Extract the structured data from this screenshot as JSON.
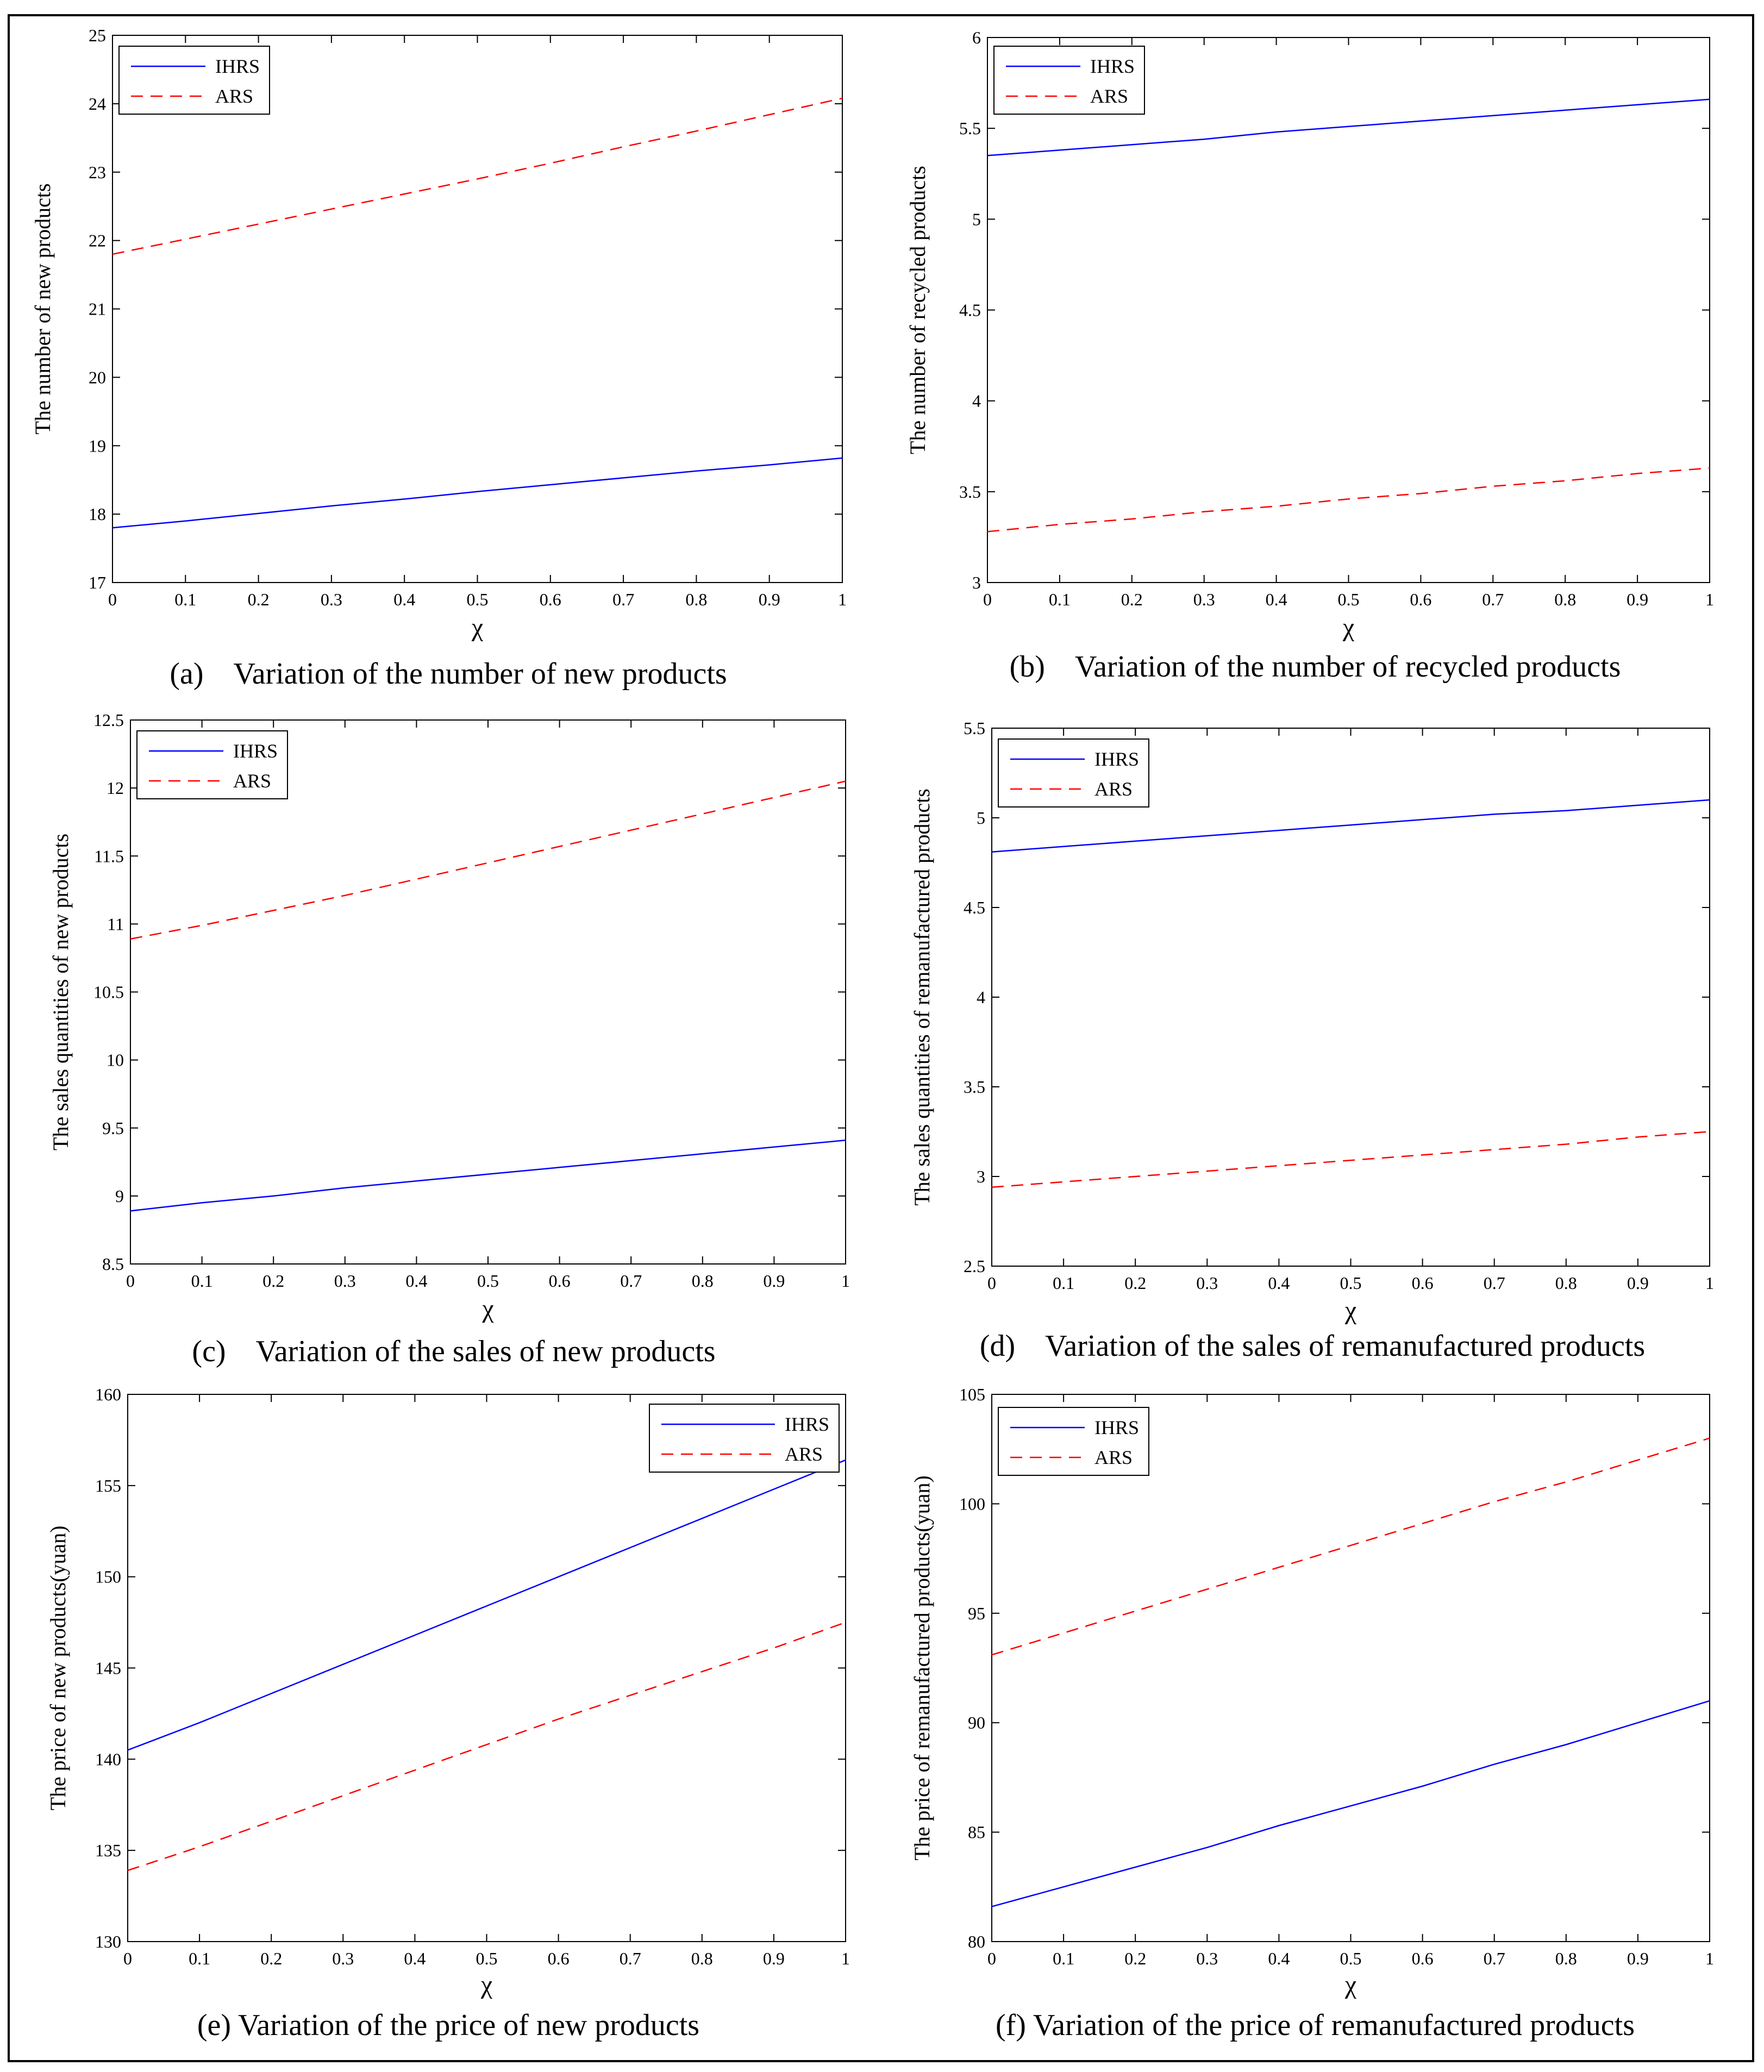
{
  "chart_data": [
    {
      "type": "line",
      "caption": "(a)    Variation of the number of new products",
      "xlabel": "χ",
      "ylabel": "The number of new products",
      "xlim": [
        0,
        1
      ],
      "ylim": [
        17,
        25
      ],
      "xticks": [
        "0",
        "0.1",
        "0.2",
        "0.3",
        "0.4",
        "0.5",
        "0.6",
        "0.7",
        "0.8",
        "0.9",
        "1"
      ],
      "yticks": [
        "17",
        "18",
        "19",
        "20",
        "21",
        "22",
        "23",
        "24",
        "25"
      ],
      "legend_position": "top-left",
      "x": [
        0,
        0.1,
        0.2,
        0.3,
        0.4,
        0.5,
        0.6,
        0.7,
        0.8,
        0.9,
        1
      ],
      "series": [
        {
          "name": "IHRS",
          "color": "#0000ff",
          "style": "solid",
          "values": [
            17.8,
            17.9,
            18.01,
            18.12,
            18.22,
            18.33,
            18.43,
            18.53,
            18.63,
            18.72,
            18.82
          ]
        },
        {
          "name": "ARS",
          "color": "#ff0000",
          "style": "dashed",
          "values": [
            21.8,
            22.02,
            22.24,
            22.46,
            22.68,
            22.9,
            23.13,
            23.37,
            23.6,
            23.84,
            24.08
          ]
        }
      ]
    },
    {
      "type": "line",
      "caption": "(b)    Variation of the number of recycled products",
      "xlabel": "χ",
      "ylabel": "The number of recycled products",
      "xlim": [
        0,
        1
      ],
      "ylim": [
        3,
        6
      ],
      "xticks": [
        "0",
        "0.1",
        "0.2",
        "0.3",
        "0.4",
        "0.5",
        "0.6",
        "0.7",
        "0.8",
        "0.9",
        "1"
      ],
      "yticks": [
        "3",
        "3.5",
        "4",
        "4.5",
        "5",
        "5.5",
        "6"
      ],
      "legend_position": "top-left",
      "x": [
        0,
        0.1,
        0.2,
        0.3,
        0.4,
        0.5,
        0.6,
        0.7,
        0.8,
        0.9,
        1
      ],
      "series": [
        {
          "name": "IHRS",
          "color": "#0000ff",
          "style": "solid",
          "values": [
            5.35,
            5.38,
            5.41,
            5.44,
            5.48,
            5.51,
            5.54,
            5.57,
            5.6,
            5.63,
            5.66
          ]
        },
        {
          "name": "ARS",
          "color": "#ff0000",
          "style": "dashed",
          "values": [
            3.28,
            3.32,
            3.35,
            3.39,
            3.42,
            3.46,
            3.49,
            3.53,
            3.56,
            3.6,
            3.63
          ]
        }
      ]
    },
    {
      "type": "line",
      "caption": "(c)    Variation of the sales of new products",
      "xlabel": "χ",
      "ylabel": "The sales quantities of new products",
      "xlim": [
        0,
        1
      ],
      "ylim": [
        8.5,
        12.5
      ],
      "xticks": [
        "0",
        "0.1",
        "0.2",
        "0.3",
        "0.4",
        "0.5",
        "0.6",
        "0.7",
        "0.8",
        "0.9",
        "1"
      ],
      "yticks": [
        "8.5",
        "9",
        "9.5",
        "10",
        "10.5",
        "11",
        "11.5",
        "12",
        "12.5"
      ],
      "legend_position": "top-left",
      "x": [
        0,
        0.1,
        0.2,
        0.3,
        0.4,
        0.5,
        0.6,
        0.7,
        0.8,
        0.9,
        1
      ],
      "series": [
        {
          "name": "IHRS",
          "color": "#0000ff",
          "style": "solid",
          "values": [
            8.89,
            8.95,
            9.0,
            9.06,
            9.11,
            9.16,
            9.21,
            9.26,
            9.31,
            9.36,
            9.41
          ]
        },
        {
          "name": "ARS",
          "color": "#ff0000",
          "style": "dashed",
          "values": [
            10.89,
            10.99,
            11.1,
            11.21,
            11.33,
            11.45,
            11.57,
            11.69,
            11.81,
            11.93,
            12.05
          ]
        }
      ]
    },
    {
      "type": "line",
      "caption": "(d)    Variation of the sales of remanufactured products",
      "xlabel": "χ",
      "ylabel": "The sales quantities of remanufactured products",
      "xlim": [
        0,
        1
      ],
      "ylim": [
        2.5,
        5.5
      ],
      "xticks": [
        "0",
        "0.1",
        "0.2",
        "0.3",
        "0.4",
        "0.5",
        "0.6",
        "0.7",
        "0.8",
        "0.9",
        "1"
      ],
      "yticks": [
        "2.5",
        "3",
        "3.5",
        "4",
        "4.5",
        "5",
        "5.5"
      ],
      "legend_position": "top-left",
      "x": [
        0,
        0.1,
        0.2,
        0.3,
        0.4,
        0.5,
        0.6,
        0.7,
        0.8,
        0.9,
        1
      ],
      "series": [
        {
          "name": "IHRS",
          "color": "#0000ff",
          "style": "solid",
          "values": [
            4.81,
            4.84,
            4.87,
            4.9,
            4.93,
            4.96,
            4.99,
            5.02,
            5.04,
            5.07,
            5.1
          ]
        },
        {
          "name": "ARS",
          "color": "#ff0000",
          "style": "dashed",
          "values": [
            2.94,
            2.97,
            3.0,
            3.03,
            3.06,
            3.09,
            3.12,
            3.15,
            3.18,
            3.22,
            3.25
          ]
        }
      ]
    },
    {
      "type": "line",
      "caption": "(e) Variation of the price of new products",
      "xlabel": "χ",
      "ylabel": "The price of new products(yuan)",
      "xlim": [
        0,
        1
      ],
      "ylim": [
        130,
        160
      ],
      "xticks": [
        "0",
        "0.1",
        "0.2",
        "0.3",
        "0.4",
        "0.5",
        "0.6",
        "0.7",
        "0.8",
        "0.9",
        "1"
      ],
      "yticks": [
        "130",
        "135",
        "140",
        "145",
        "150",
        "155",
        "160"
      ],
      "legend_position": "top-right",
      "x": [
        0,
        0.1,
        0.2,
        0.3,
        0.4,
        0.5,
        0.6,
        0.7,
        0.8,
        0.9,
        1
      ],
      "series": [
        {
          "name": "IHRS",
          "color": "#0000ff",
          "style": "solid",
          "values": [
            140.5,
            142.0,
            143.6,
            145.2,
            146.8,
            148.4,
            150.0,
            151.6,
            153.2,
            154.8,
            156.4
          ]
        },
        {
          "name": "ARS",
          "color": "#ff0000",
          "style": "dashed",
          "values": [
            133.9,
            135.2,
            136.6,
            138.0,
            139.4,
            140.8,
            142.2,
            143.5,
            144.8,
            146.1,
            147.5
          ]
        }
      ]
    },
    {
      "type": "line",
      "caption": "(f) Variation of the price of remanufactured products",
      "xlabel": "χ",
      "ylabel": "The price of remanufactured products(yuan)",
      "xlim": [
        0,
        1
      ],
      "ylim": [
        80,
        105
      ],
      "xticks": [
        "0",
        "0.1",
        "0.2",
        "0.3",
        "0.4",
        "0.5",
        "0.6",
        "0.7",
        "0.8",
        "0.9",
        "1"
      ],
      "yticks": [
        "80",
        "85",
        "90",
        "95",
        "100",
        "105"
      ],
      "legend_position": "top-left",
      "x": [
        0,
        0.1,
        0.2,
        0.3,
        0.4,
        0.5,
        0.6,
        0.7,
        0.8,
        0.9,
        1
      ],
      "series": [
        {
          "name": "IHRS",
          "color": "#0000ff",
          "style": "solid",
          "values": [
            81.6,
            82.5,
            83.4,
            84.3,
            85.3,
            86.2,
            87.1,
            88.1,
            89.0,
            90.0,
            91.0
          ]
        },
        {
          "name": "ARS",
          "color": "#ff0000",
          "style": "dashed",
          "values": [
            93.1,
            94.1,
            95.1,
            96.1,
            97.1,
            98.1,
            99.1,
            100.1,
            101.0,
            102.0,
            103.0
          ]
        }
      ]
    }
  ]
}
